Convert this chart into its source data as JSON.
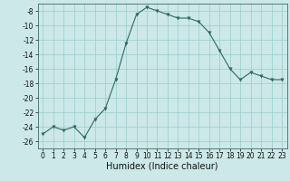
{
  "x": [
    0,
    1,
    2,
    3,
    4,
    5,
    6,
    7,
    8,
    9,
    10,
    11,
    12,
    13,
    14,
    15,
    16,
    17,
    18,
    19,
    20,
    21,
    22,
    23
  ],
  "y": [
    -25,
    -24,
    -24.5,
    -24,
    -25.5,
    -23,
    -21.5,
    -17.5,
    -12.5,
    -8.5,
    -7.5,
    -8,
    -8.5,
    -9,
    -9,
    -9.5,
    -11,
    -13.5,
    -16,
    -17.5,
    -16.5,
    -17,
    -17.5,
    -17.5
  ],
  "line_color": "#2d6b5e",
  "marker_size": 2.5,
  "bg_color": "#cce8e8",
  "grid_color": "#99cccc",
  "xlabel": "Humidex (Indice chaleur)",
  "xlabel_fontsize": 7,
  "tick_fontsize": 5.5,
  "ylim": [
    -27,
    -7
  ],
  "xlim": [
    -0.5,
    23.5
  ],
  "yticks": [
    -8,
    -10,
    -12,
    -14,
    -16,
    -18,
    -20,
    -22,
    -24,
    -26
  ],
  "xticks": [
    0,
    1,
    2,
    3,
    4,
    5,
    6,
    7,
    8,
    9,
    10,
    11,
    12,
    13,
    14,
    15,
    16,
    17,
    18,
    19,
    20,
    21,
    22,
    23
  ]
}
